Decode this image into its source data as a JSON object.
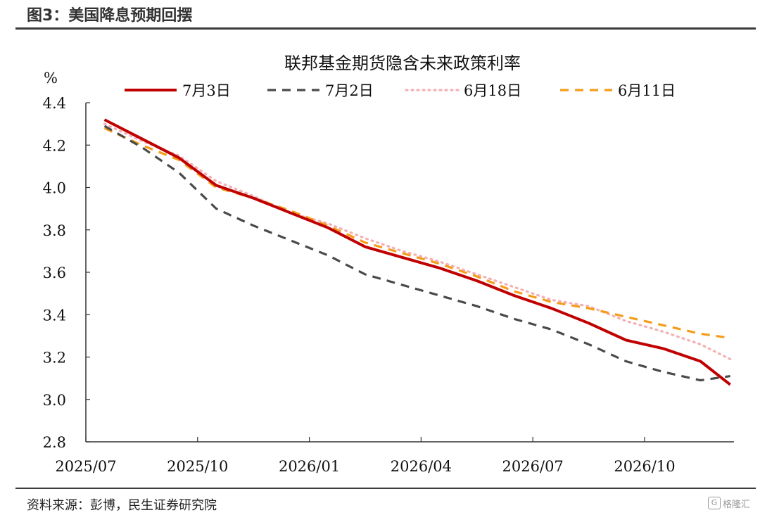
{
  "header": {
    "title": "图3：美国降息预期回摆"
  },
  "footer": {
    "source": "资料来源：彭博，民生证券研究院",
    "watermark": "格隆汇"
  },
  "chart_data": {
    "type": "line",
    "title": "联邦基金期货隐含未来政策利率",
    "ylabel": "%",
    "xlabel": "",
    "ylim": [
      2.8,
      4.4
    ],
    "yticks": [
      "2.8",
      "3.0",
      "3.2",
      "3.4",
      "3.6",
      "3.8",
      "4.0",
      "4.2",
      "4.4"
    ],
    "xlim": [
      0,
      17.4
    ],
    "xticks": [
      {
        "pos": 0,
        "label": "2025/07"
      },
      {
        "pos": 3,
        "label": "2025/10"
      },
      {
        "pos": 6,
        "label": "2026/01"
      },
      {
        "pos": 9,
        "label": "2026/04"
      },
      {
        "pos": 12,
        "label": "2026/07"
      },
      {
        "pos": 15,
        "label": "2026/10"
      }
    ],
    "x": [
      0.5,
      1.5,
      2.5,
      3.5,
      4.5,
      5.5,
      6.5,
      7.5,
      8.5,
      9.5,
      10.5,
      11.5,
      12.5,
      13.5,
      14.5,
      15.5,
      16.5,
      17.3
    ],
    "legend_position": "top",
    "series": [
      {
        "name": "7月3日",
        "color": "#c00000",
        "dash": "solid",
        "values": [
          4.32,
          4.23,
          4.14,
          4.01,
          3.95,
          3.88,
          3.81,
          3.72,
          3.67,
          3.62,
          3.56,
          3.49,
          3.43,
          3.36,
          3.28,
          3.24,
          3.18,
          3.07
        ]
      },
      {
        "name": "7月2日",
        "color": "#4a4a4a",
        "dash": "dashed",
        "values": [
          4.29,
          4.19,
          4.07,
          3.9,
          3.82,
          3.75,
          3.68,
          3.59,
          3.54,
          3.49,
          3.44,
          3.38,
          3.33,
          3.26,
          3.18,
          3.13,
          3.09,
          3.11
        ]
      },
      {
        "name": "6月18日",
        "color": "#f4b0b4",
        "dash": "dotted",
        "values": [
          4.3,
          4.22,
          4.15,
          4.03,
          3.96,
          3.88,
          3.83,
          3.76,
          3.7,
          3.65,
          3.59,
          3.53,
          3.47,
          3.44,
          3.37,
          3.32,
          3.26,
          3.19
        ]
      },
      {
        "name": "6月11日",
        "color": "#f59c1a",
        "dash": "dashed",
        "values": [
          4.28,
          4.2,
          4.13,
          4.0,
          3.95,
          3.89,
          3.82,
          3.74,
          3.69,
          3.64,
          3.58,
          3.51,
          3.46,
          3.43,
          3.39,
          3.35,
          3.31,
          3.29
        ]
      }
    ]
  }
}
